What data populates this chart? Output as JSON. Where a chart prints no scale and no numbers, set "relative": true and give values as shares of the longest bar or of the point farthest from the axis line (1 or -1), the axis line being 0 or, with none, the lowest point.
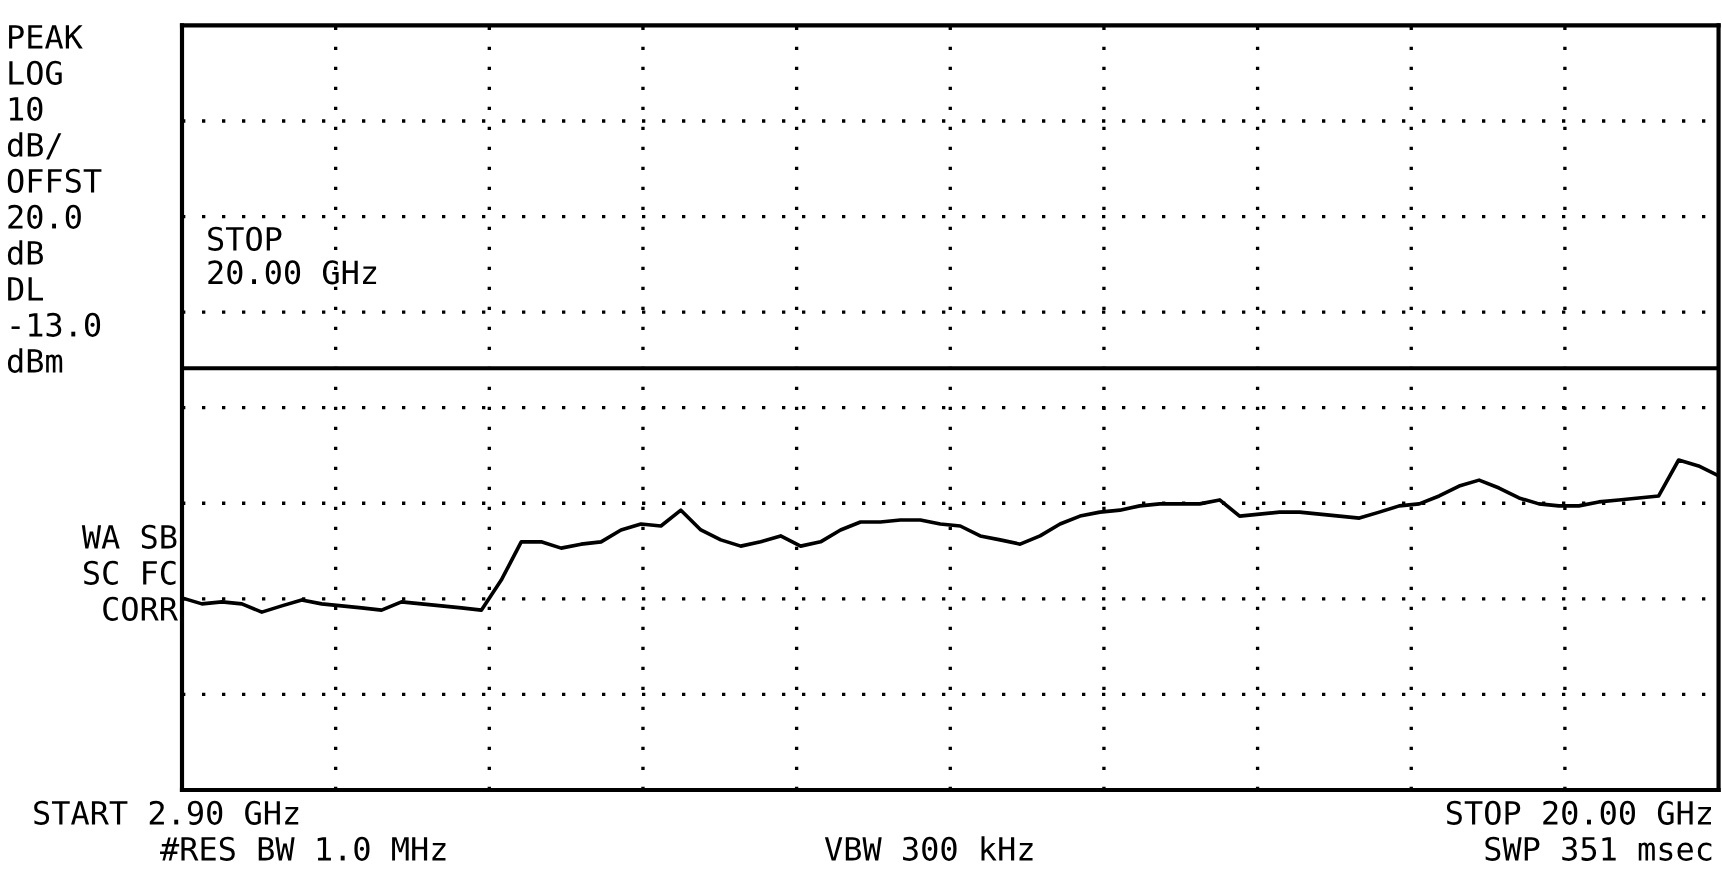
{
  "chart_data": {
    "type": "line",
    "relative": true,
    "categories": [
      null,
      null,
      null,
      null,
      null,
      null,
      null,
      null,
      null,
      null,
      null,
      null,
      null,
      null,
      null,
      null,
      null,
      null,
      null,
      null,
      null,
      null,
      null,
      null,
      null,
      null,
      null,
      null,
      null,
      null,
      null,
      null,
      null,
      null,
      null,
      null,
      null,
      null,
      null,
      null,
      null,
      null,
      null,
      null,
      null,
      null,
      null,
      null,
      null,
      null,
      null,
      null,
      null,
      null,
      null,
      null,
      null,
      null,
      null,
      null,
      null,
      null,
      null,
      null,
      null,
      null,
      null,
      null,
      null,
      null,
      null,
      null,
      null,
      null,
      null,
      null,
      null,
      null
    ],
    "grid": true,
    "marker": "none",
    "line_style": "solid",
    "series": [
      {
        "color": "#000000",
        "values": [
          0.582,
          0.564,
          0.57,
          0.564,
          0.539,
          0.558,
          0.576,
          0.564,
          0.558,
          0.552,
          0.545,
          0.57,
          0.564,
          0.558,
          0.552,
          0.545,
          0.636,
          0.752,
          0.752,
          0.733,
          0.745,
          0.752,
          0.788,
          0.806,
          0.8,
          0.848,
          0.788,
          0.758,
          0.739,
          0.752,
          0.77,
          0.739,
          0.752,
          0.788,
          0.812,
          0.812,
          0.818,
          0.818,
          0.806,
          0.8,
          0.77,
          0.758,
          0.745,
          0.77,
          0.806,
          0.83,
          0.842,
          0.848,
          0.861,
          0.867,
          0.867,
          0.867,
          0.879,
          0.83,
          0.836,
          0.842,
          0.842,
          0.836,
          0.83,
          0.824,
          0.842,
          0.861,
          0.867,
          0.891,
          0.921,
          0.939,
          0.915,
          0.885,
          0.867,
          0.861,
          0.861,
          0.873,
          0.879,
          0.885,
          0.891,
          1,
          0.982,
          0.952
        ]
      }
    ],
    "ref_lines": [
      {
        "axis": "y",
        "value": 1.278,
        "color": "#000000",
        "line_style": "solid"
      }
    ],
    "annotations": [
      "PEAK",
      "LOG",
      "10",
      "dB/",
      "OFFST",
      "20.0",
      "dB",
      "DL",
      "-13.0",
      "dBm",
      "WA SB",
      "SC FC",
      "CORR",
      "STOP\n20.00 GHz",
      "START 2.90 GHz",
      "#RES BW 1.0 MHz",
      "VBW 300 kHz",
      "STOP 20.00 GHz",
      "SWP 351 msec"
    ]
  }
}
